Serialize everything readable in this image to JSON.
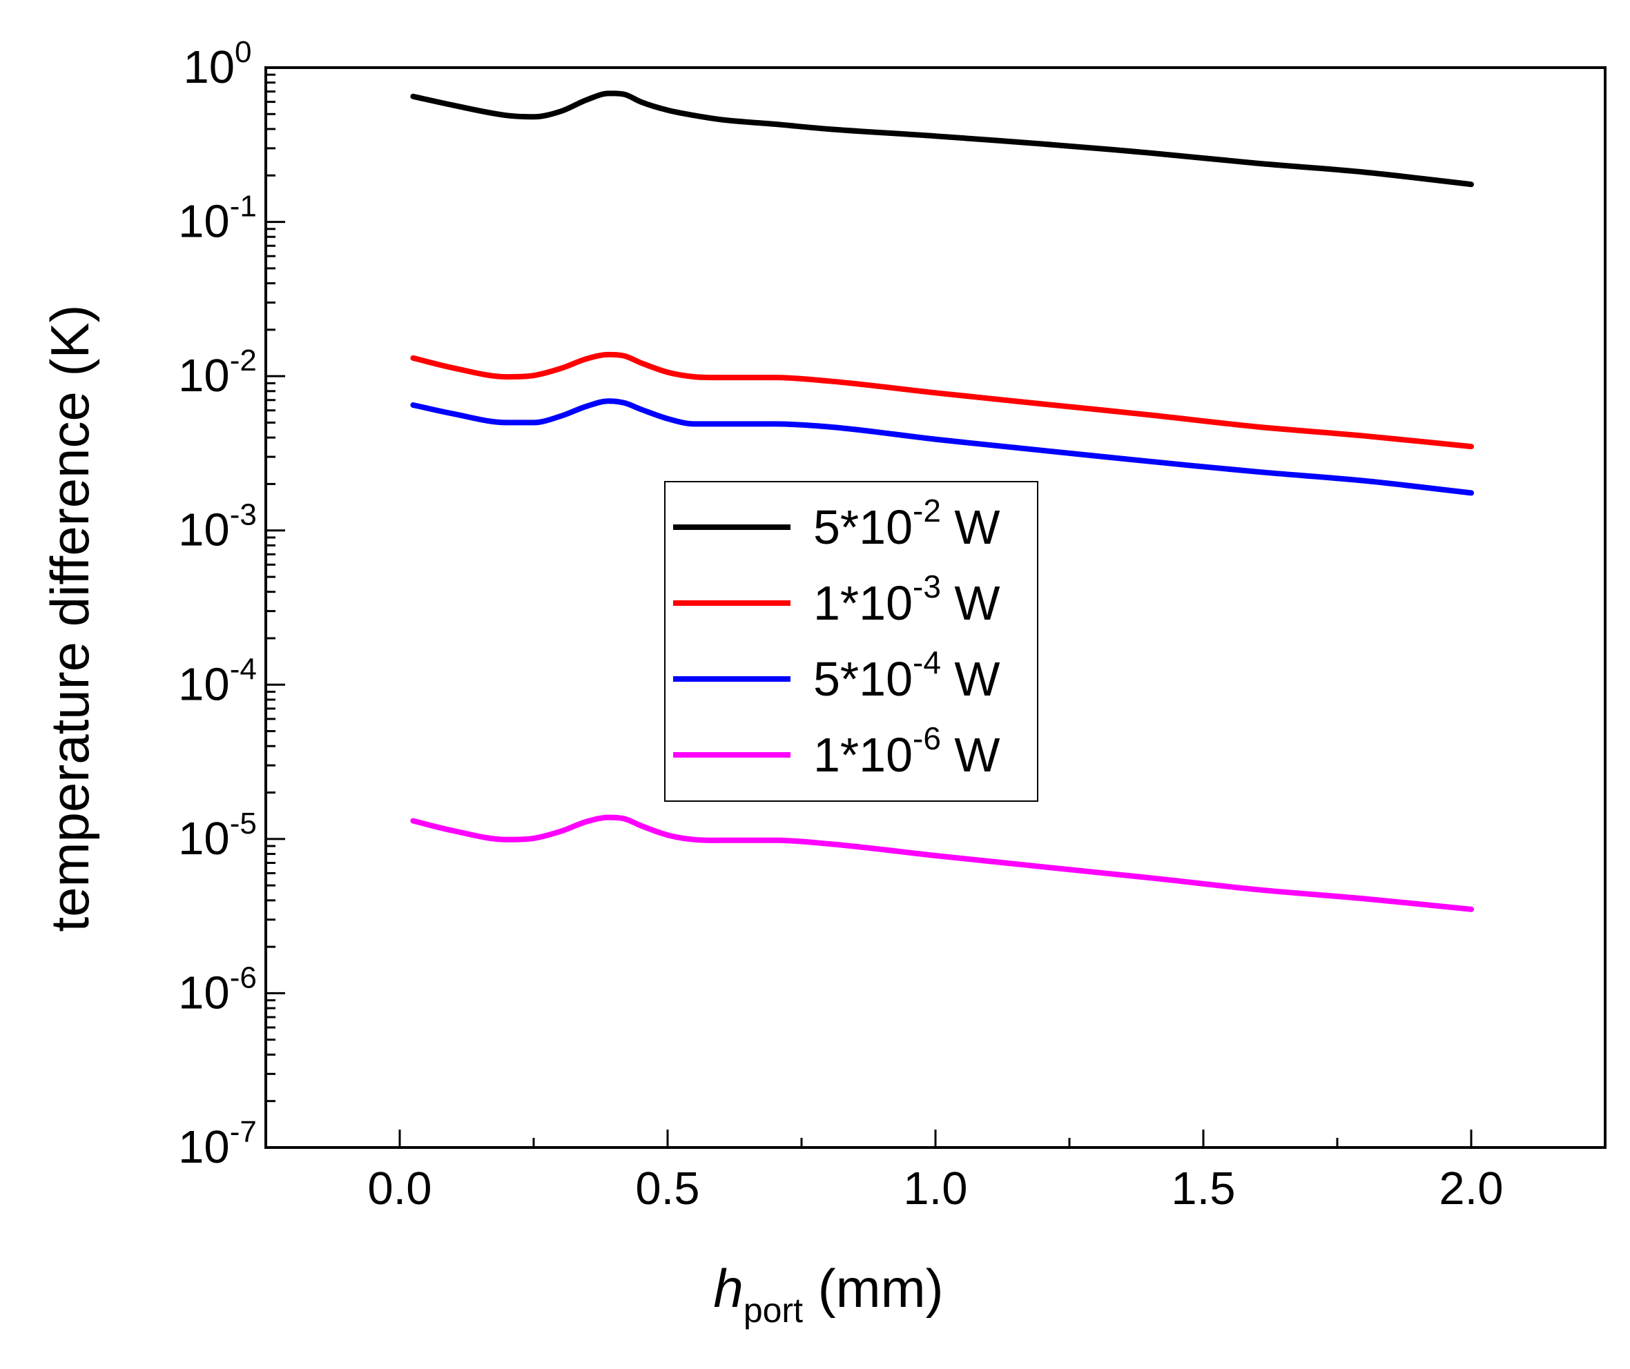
{
  "chart_data": {
    "type": "line",
    "title": "",
    "xlabel": {
      "main": "h",
      "sub": "port",
      "unit": " (mm)"
    },
    "ylabel": "temperature difference (K)",
    "xlim": [
      -0.25,
      2.25
    ],
    "ylim": [
      1e-07,
      1
    ],
    "y_scale": "log",
    "grid": false,
    "legend_position": "center",
    "x_ticks": [
      {
        "value": 0.0,
        "label": "0.0"
      },
      {
        "value": 0.5,
        "label": "0.5"
      },
      {
        "value": 1.0,
        "label": "1.0"
      },
      {
        "value": 1.5,
        "label": "1.5"
      },
      {
        "value": 2.0,
        "label": "2.0"
      }
    ],
    "y_ticks": [
      {
        "value": 1,
        "base": "10",
        "exp": "0"
      },
      {
        "value": 0.1,
        "base": "10",
        "exp": "-1"
      },
      {
        "value": 0.01,
        "base": "10",
        "exp": "-2"
      },
      {
        "value": 0.001,
        "base": "10",
        "exp": "-3"
      },
      {
        "value": 0.0001,
        "base": "10",
        "exp": "-4"
      },
      {
        "value": 1e-05,
        "base": "10",
        "exp": "-5"
      },
      {
        "value": 1e-06,
        "base": "10",
        "exp": "-6"
      },
      {
        "value": 1e-07,
        "base": "10",
        "exp": "-7"
      }
    ],
    "x": [
      0.025,
      0.1,
      0.2,
      0.25,
      0.3,
      0.35,
      0.39,
      0.42,
      0.45,
      0.5,
      0.55,
      0.6,
      0.7,
      0.8,
      1.0,
      1.2,
      1.4,
      1.6,
      1.8,
      2.0
    ],
    "series": [
      {
        "legend_prefix": "5*10",
        "legend_exp": "-2",
        "legend_suffix": " W",
        "color": "#000000",
        "values": [
          0.65,
          0.57,
          0.49,
          0.48,
          0.52,
          0.62,
          0.68,
          0.67,
          0.6,
          0.53,
          0.49,
          0.46,
          0.43,
          0.4,
          0.36,
          0.32,
          0.28,
          0.24,
          0.21,
          0.175
        ]
      },
      {
        "legend_prefix": "1*10",
        "legend_exp": "-3",
        "legend_suffix": " W",
        "color": "#ff0000",
        "values": [
          0.0131,
          0.0113,
          0.0099,
          0.0101,
          0.0112,
          0.013,
          0.0138,
          0.0135,
          0.0122,
          0.0106,
          0.0099,
          0.0098,
          0.0098,
          0.0093,
          0.0078,
          0.0066,
          0.0056,
          0.0047,
          0.0041,
          0.0035
        ]
      },
      {
        "legend_prefix": "5*10",
        "legend_exp": "-4",
        "legend_suffix": " W",
        "color": "#0000ff",
        "values": [
          0.0065,
          0.0057,
          0.005,
          0.005,
          0.0055,
          0.0064,
          0.0069,
          0.0067,
          0.0061,
          0.0053,
          0.0049,
          0.0049,
          0.0049,
          0.0047,
          0.0039,
          0.0033,
          0.0028,
          0.0024,
          0.0021,
          0.00175
        ]
      },
      {
        "legend_prefix": "1*10",
        "legend_exp": "-6",
        "legend_suffix": " W",
        "color": "#ff00ff",
        "values": [
          1.31e-05,
          1.13e-05,
          9.9e-06,
          1.01e-05,
          1.12e-05,
          1.3e-05,
          1.38e-05,
          1.35e-05,
          1.22e-05,
          1.06e-05,
          9.9e-06,
          9.8e-06,
          9.8e-06,
          9.3e-06,
          7.8e-06,
          6.6e-06,
          5.6e-06,
          4.7e-06,
          4.1e-06,
          3.5e-06
        ]
      }
    ]
  }
}
